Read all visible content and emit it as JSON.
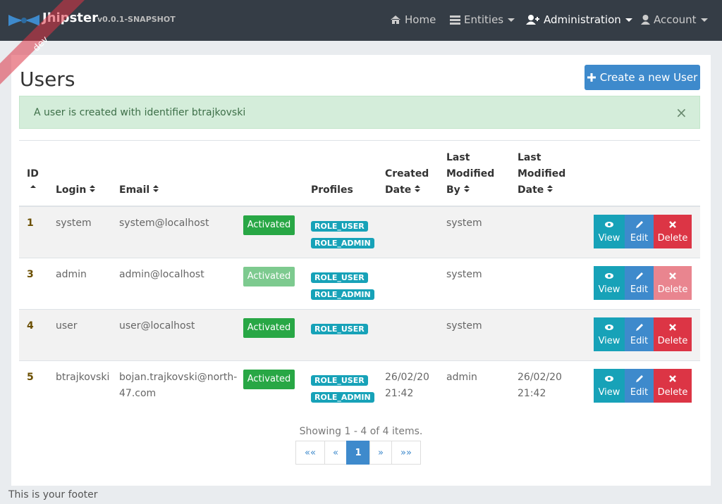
{
  "navbar": {
    "brand": "Jhipster",
    "version": "v0.0.1-SNAPSHOT",
    "ribbon": "dev",
    "items": [
      "Home",
      "Entities",
      "Administration",
      "Account"
    ]
  },
  "page": {
    "title": "Users",
    "create_button": "Create a new User",
    "alert": "A user is created with identifier btrajkovski",
    "alert_close": "×"
  },
  "table": {
    "headers": [
      "ID",
      "Login",
      "Email",
      "Profiles",
      "Created Date",
      "Last Modified By",
      "Last Modified Date"
    ],
    "actions": [
      "View",
      "Edit",
      "Delete"
    ],
    "rows": [
      {
        "id": "1",
        "login": "system",
        "email": "system@localhost",
        "status": "Activated",
        "profiles": [
          "ROLE_USER",
          "ROLE_ADMIN"
        ],
        "last_modified_by": "system"
      },
      {
        "id": "3",
        "login": "admin",
        "email": "admin@localhost",
        "status": "Activated",
        "profiles": [
          "ROLE_USER",
          "ROLE_ADMIN"
        ],
        "last_modified_by": "system",
        "disabled": true
      },
      {
        "id": "4",
        "login": "user",
        "email": "user@localhost",
        "status": "Activated",
        "profiles": [
          "ROLE_USER"
        ],
        "last_modified_by": "system"
      },
      {
        "id": "5",
        "login": "btrajkovski",
        "email": "bojan.trajkovski@north-47.com",
        "status": "Activated",
        "profiles": [
          "ROLE_USER",
          "ROLE_ADMIN"
        ],
        "created_date": "26/02/20 21:42",
        "last_modified_by": "admin",
        "last_modified_date": "26/02/20 21:42"
      }
    ]
  },
  "pagination": {
    "summary": "Showing 1 - 4 of 4 items.",
    "pages": [
      "««",
      "«",
      "1",
      "»",
      "»»"
    ]
  },
  "footer": "This is your footer"
}
